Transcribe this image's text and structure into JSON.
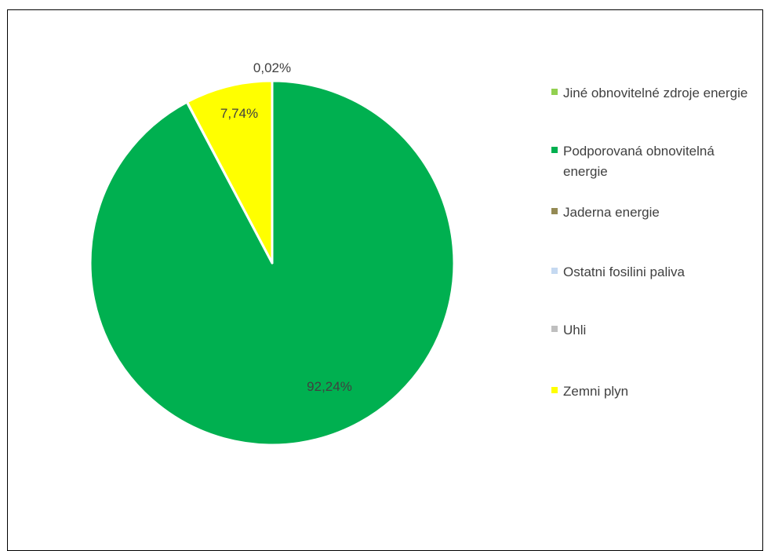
{
  "chart_data": {
    "type": "pie",
    "title": "",
    "start_angle_deg": 0,
    "direction": "clockwise",
    "slices": [
      {
        "name": "Jiné obnovitelné zdroje energie",
        "value": 0.0,
        "label": "",
        "color": "#92D050"
      },
      {
        "name": "Podporovaná obnovitelná energie",
        "value": 92.24,
        "label": "92,24%",
        "color": "#00B050"
      },
      {
        "name": "Jaderna energie",
        "value": 0.0,
        "label": "",
        "color": "#948A54"
      },
      {
        "name": "Ostatni fosilini paliva",
        "value": 0.0,
        "label": "",
        "color": "#C5D9F1"
      },
      {
        "name": "Uhli",
        "value": 0.02,
        "label": "0,02%",
        "color": "#BFBFBF"
      },
      {
        "name": "Zemni plyn",
        "value": 7.74,
        "label": "7,74%",
        "color": "#FFFF00"
      }
    ],
    "legend_position": "right"
  }
}
